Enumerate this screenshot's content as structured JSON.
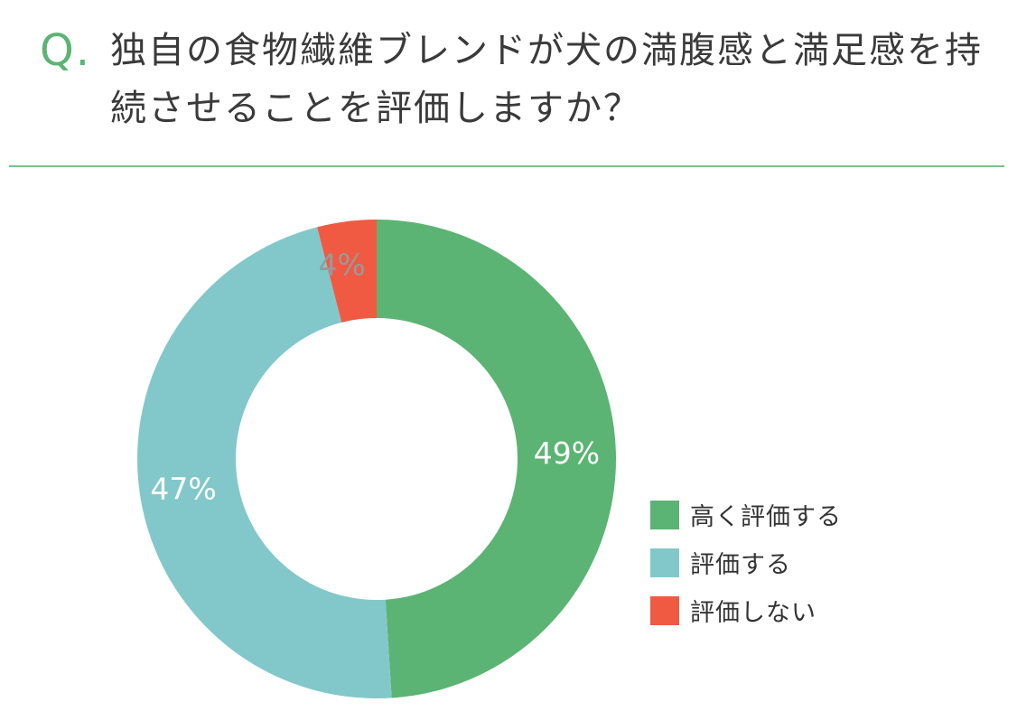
{
  "question": {
    "mark": "Q.",
    "text": "独自の食物繊維ブレンドが犬の満腹感と満足感を持続させることを評価しますか？"
  },
  "colors": {
    "accent": "#5bb473",
    "divider": "#74c28b"
  },
  "chart_data": {
    "type": "pie",
    "style": "donut",
    "categories": [
      "高く評価する",
      "評価する",
      "評価しない"
    ],
    "values": [
      49,
      47,
      4
    ],
    "data_labels": [
      "49%",
      "47%",
      "4%"
    ],
    "colors": [
      "#5bb473",
      "#82c8ca",
      "#f05a43"
    ],
    "label_colors": [
      "#ffffff",
      "#ffffff",
      "#999999"
    ],
    "legend_position": "right-bottom"
  }
}
